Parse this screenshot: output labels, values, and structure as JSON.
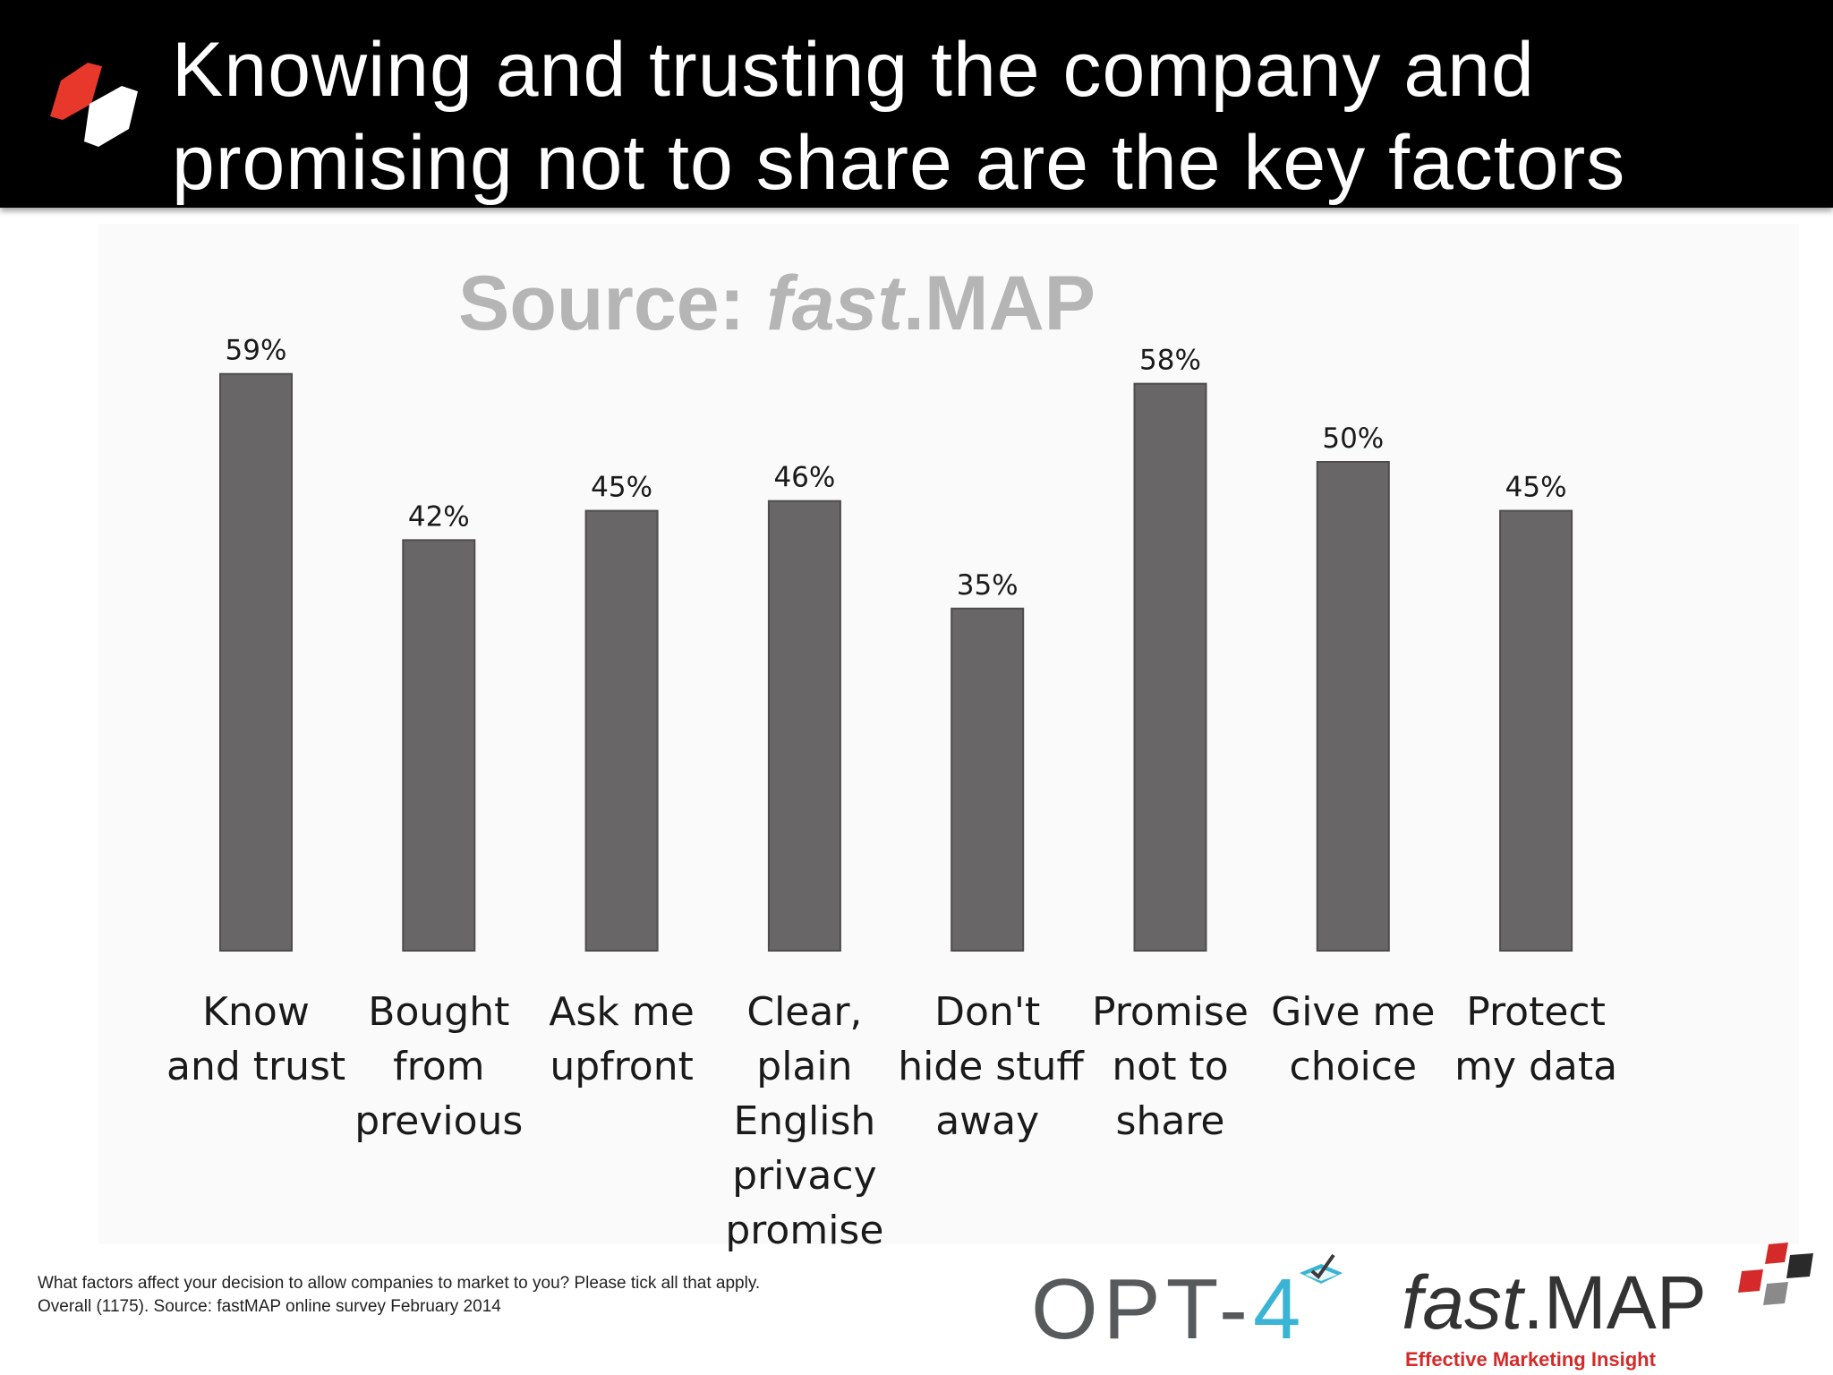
{
  "header": {
    "title_line1": "Knowing and trusting the company and",
    "title_line2": "promising not to share are the key factors"
  },
  "source_label": {
    "prefix": "Source: ",
    "brand_italic": "fast",
    "brand_rest": ".MAP"
  },
  "chart_data": {
    "type": "bar",
    "title": "Knowing and trusting the company and promising not to share are the key factors",
    "categories": [
      "Know and trust",
      "Bought from previous",
      "Ask me upfront",
      "Clear, plain English privacy promise",
      "Don't hide stuff away",
      "Promise not to share",
      "Give me choice",
      "Protect my data"
    ],
    "category_lines": [
      [
        "Know",
        "and trust"
      ],
      [
        "Bought",
        "from",
        "previous"
      ],
      [
        "Ask me",
        "upfront"
      ],
      [
        "Clear,",
        "plain",
        "English",
        "privacy",
        "promise"
      ],
      [
        "Don't",
        "hide stuff",
        "away"
      ],
      [
        "Promise",
        "not to",
        "share"
      ],
      [
        "Give me",
        "choice"
      ],
      [
        "Protect",
        "my data"
      ]
    ],
    "values": [
      59,
      42,
      45,
      46,
      35,
      58,
      50,
      45
    ],
    "data_labels": [
      "59%",
      "42%",
      "45%",
      "46%",
      "35%",
      "58%",
      "50%",
      "45%"
    ],
    "xlabel": "",
    "ylabel": "",
    "ylim": [
      0,
      100
    ],
    "grid": false,
    "bar_color": "#686667"
  },
  "footnote": {
    "line1": "What factors affect your decision to allow companies to market to you? Please tick all that apply.",
    "line2": "Overall (1175). Source: fastMAP online survey February 2014"
  },
  "logos": {
    "opt4": {
      "text": "OPT-",
      "digit": "4",
      "digit_color": "#3ab4d4",
      "icon": "checkbox-tick-icon"
    },
    "fastmap": {
      "fast": "fast",
      "map": ".MAP",
      "tagline": "Effective Marketing Insight",
      "tagline_color": "#d42a2a"
    },
    "header_mark_colors": [
      "#e8382c",
      "#ffffff"
    ]
  }
}
